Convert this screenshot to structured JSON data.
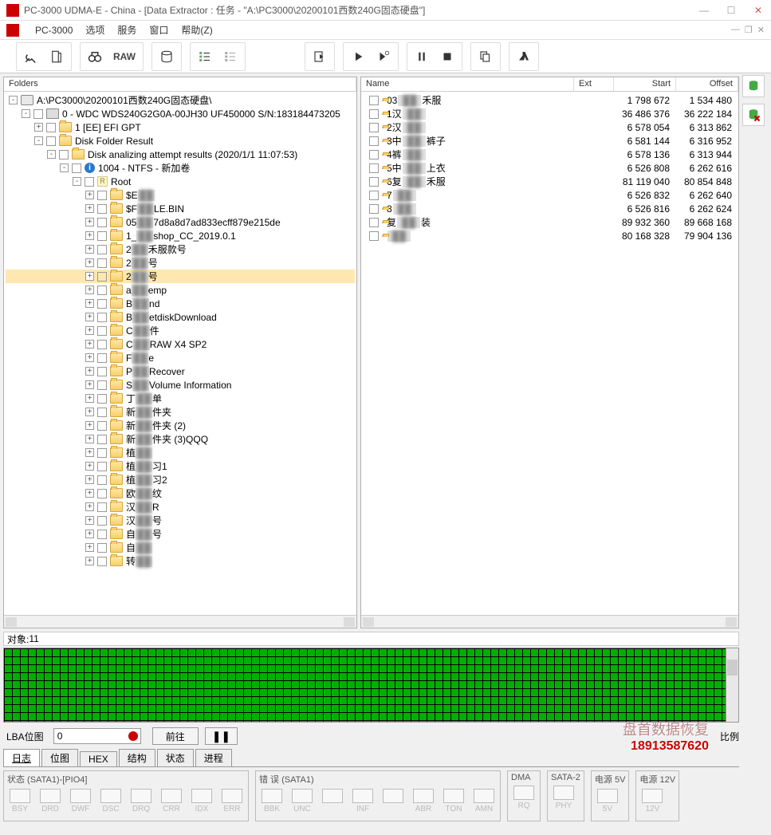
{
  "window": {
    "title": "PC-3000 UDMA-E - China - [Data Extractor : 任务 - \"A:\\PC3000\\20200101西数240G固态硬盘\"]"
  },
  "menu": {
    "app": "PC-3000",
    "items": [
      "选项",
      "服务",
      "窗口",
      "帮助(Z)"
    ]
  },
  "toolbar": {
    "raw": "RAW"
  },
  "folders_header": "Folders",
  "tree": [
    {
      "d": 0,
      "e": "-",
      "i": "drive",
      "t": "A:\\PC3000\\20200101西数240G固态硬盘\\"
    },
    {
      "d": 1,
      "e": "-",
      "c": 1,
      "i": "disk",
      "t": "0 - WDC WDS240G2G0A-00JH30 UF450000 S/N:183184473205"
    },
    {
      "d": 2,
      "e": "+",
      "c": 1,
      "i": "folder",
      "pre": "1 [EE] EFI GPT",
      "badge": "xx"
    },
    {
      "d": 2,
      "e": "-",
      "c": 1,
      "i": "folder",
      "t": "Disk Folder Result"
    },
    {
      "d": 3,
      "e": "-",
      "c": 1,
      "i": "folder",
      "t": "Disk analizing attempt results (2020/1/1 11:07:53)"
    },
    {
      "d": 4,
      "e": "-",
      "c": 1,
      "i": "info",
      "t": "1004 - NTFS - 新加卷"
    },
    {
      "d": 5,
      "e": "-",
      "c": 1,
      "i": "root",
      "t": "Root"
    },
    {
      "d": 6,
      "e": "+",
      "c": 1,
      "i": "folder",
      "pre": "$E",
      "blur": "  "
    },
    {
      "d": 6,
      "e": "+",
      "c": 1,
      "i": "folder",
      "pre": "$F",
      "blur": "  ",
      "post": "LE.BIN"
    },
    {
      "d": 6,
      "e": "+",
      "c": 1,
      "i": "folder",
      "pre": "05",
      "blur": "  ",
      "post": "7d8a8d7ad833ecff879e215de"
    },
    {
      "d": 6,
      "e": "+",
      "c": 1,
      "i": "folder",
      "pre": "1_",
      "blur": "  ",
      "post": "shop_CC_2019.0.1"
    },
    {
      "d": 6,
      "e": "+",
      "c": 1,
      "i": "folder",
      "pre": "2",
      "blur": "  ",
      "post": "禾服款号"
    },
    {
      "d": 6,
      "e": "+",
      "c": 1,
      "i": "folder",
      "pre": "2",
      "blur": "  ",
      "post": "号"
    },
    {
      "d": 6,
      "e": "+",
      "c": 1,
      "i": "folder",
      "pre": "2",
      "blur": "  ",
      "post": "号",
      "sel": 1
    },
    {
      "d": 6,
      "e": "+",
      "c": 1,
      "i": "folder",
      "pre": "a",
      "blur": "  ",
      "post": "emp"
    },
    {
      "d": 6,
      "e": "+",
      "c": 1,
      "i": "folder",
      "pre": "B",
      "blur": "  ",
      "post": "nd"
    },
    {
      "d": 6,
      "e": "+",
      "c": 1,
      "i": "folder",
      "pre": "B",
      "blur": "  ",
      "post": "etdiskDownload"
    },
    {
      "d": 6,
      "e": "+",
      "c": 1,
      "i": "folder",
      "pre": "C",
      "blur": "  ",
      "post": "件"
    },
    {
      "d": 6,
      "e": "+",
      "c": 1,
      "i": "folder",
      "pre": "C",
      "blur": "  ",
      "post": "RAW X4 SP2"
    },
    {
      "d": 6,
      "e": "+",
      "c": 1,
      "i": "folder",
      "pre": "F",
      "blur": "  ",
      "post": "e"
    },
    {
      "d": 6,
      "e": "+",
      "c": 1,
      "i": "folder",
      "pre": "P",
      "blur": "  ",
      "post": "Recover"
    },
    {
      "d": 6,
      "e": "+",
      "c": 1,
      "i": "folder",
      "pre": "S",
      "blur": "  ",
      "post": "Volume Information"
    },
    {
      "d": 6,
      "e": "+",
      "c": 1,
      "i": "folder",
      "pre": "丁",
      "blur": "  ",
      "post": "单"
    },
    {
      "d": 6,
      "e": "+",
      "c": 1,
      "i": "folder",
      "pre": "新",
      "blur": "  ",
      "post": "件夹"
    },
    {
      "d": 6,
      "e": "+",
      "c": 1,
      "i": "folder",
      "pre": "新",
      "blur": "  ",
      "post": "件夹 (2)"
    },
    {
      "d": 6,
      "e": "+",
      "c": 1,
      "i": "folder",
      "pre": "新",
      "blur": "  ",
      "post": "件夹 (3)QQQ"
    },
    {
      "d": 6,
      "e": "+",
      "c": 1,
      "i": "folder",
      "pre": "植",
      "blur": "  "
    },
    {
      "d": 6,
      "e": "+",
      "c": 1,
      "i": "folder",
      "pre": "植",
      "blur": "  ",
      "post": "习1"
    },
    {
      "d": 6,
      "e": "+",
      "c": 1,
      "i": "folder",
      "pre": "植",
      "blur": "  ",
      "post": "习2"
    },
    {
      "d": 6,
      "e": "+",
      "c": 1,
      "i": "folder",
      "pre": "欧",
      "blur": "  ",
      "post": "纹"
    },
    {
      "d": 6,
      "e": "+",
      "c": 1,
      "i": "folder",
      "pre": "汉",
      "blur": "  ",
      "post": "R"
    },
    {
      "d": 6,
      "e": "+",
      "c": 1,
      "i": "folder",
      "pre": "汉",
      "blur": "  ",
      "post": "号"
    },
    {
      "d": 6,
      "e": "+",
      "c": 1,
      "i": "folder",
      "pre": "自",
      "blur": "  ",
      "post": "号"
    },
    {
      "d": 6,
      "e": "+",
      "c": 1,
      "i": "folder",
      "pre": "自",
      "blur": "  "
    },
    {
      "d": 6,
      "e": "+",
      "c": 1,
      "i": "folder",
      "pre": "转",
      "blur": "  "
    }
  ],
  "list_cols": {
    "name": "Name",
    "ext": "Ext",
    "start": "Start",
    "offset": "Offset"
  },
  "list": [
    {
      "pre": "03",
      "blur": "  ",
      "post": "禾服",
      "start": "1 798 672",
      "offset": "1 534 480"
    },
    {
      "pre": "1汉",
      "blur": "  ",
      "post": "",
      "start": "36 486 376",
      "offset": "36 222 184"
    },
    {
      "pre": "2汉",
      "blur": "  ",
      "post": "",
      "start": "6 578 054",
      "offset": "6 313 862"
    },
    {
      "pre": "3中",
      "blur": "  ",
      "post": "裤子",
      "start": "6 581 144",
      "offset": "6 316 952"
    },
    {
      "pre": "4裤",
      "blur": "  ",
      "post": "",
      "start": "6 578 136",
      "offset": "6 313 944"
    },
    {
      "pre": "5中",
      "blur": " ",
      "post": "上衣",
      "start": "6 526 808",
      "offset": "6 262 616"
    },
    {
      "pre": "6复",
      "blur": " ",
      "post": "禾服",
      "start": "81 119 040",
      "offset": "80 854 848"
    },
    {
      "pre": "7",
      "blur": "   ",
      "post": "",
      "start": "6 526 832",
      "offset": "6 262 640"
    },
    {
      "pre": "8",
      "blur": "   ",
      "post": "",
      "start": "6 526 816",
      "offset": "6 262 624"
    },
    {
      "pre": "复",
      "blur": "  ",
      "post": "装",
      "start": "89 932 360",
      "offset": "89 668 168"
    },
    {
      "pre": "",
      "blur": "   ",
      "post": "",
      "start": "80 168 328",
      "offset": "79 904 136"
    }
  ],
  "objects": {
    "label": "对象:",
    "count": "11"
  },
  "lba": {
    "label": "LBA位图",
    "value": "0",
    "go": "前往",
    "ratio": "比例"
  },
  "watermark": {
    "line1": "盘首数据恢复",
    "line2": "18913587620"
  },
  "tabs": [
    "日志",
    "位图",
    "HEX",
    "结构",
    "状态",
    "进程"
  ],
  "status": {
    "g1": {
      "title": "状态 (SATA1)-[PIO4]",
      "items": [
        "BSY",
        "DRD",
        "DWF",
        "DSC",
        "DRQ",
        "CRR",
        "IDX",
        "ERR"
      ]
    },
    "g2": {
      "title": "错 误 (SATA1)",
      "items": [
        "BBK",
        "UNC",
        "",
        "INF",
        "",
        "ABR",
        "TON",
        "AMN"
      ]
    },
    "g3": {
      "title": "DMA",
      "items": [
        "RQ"
      ]
    },
    "g4": {
      "title": "SATA-2",
      "items": [
        "PHY"
      ]
    },
    "g5": {
      "title": "电源 5V",
      "items": [
        "5V"
      ]
    },
    "g6": {
      "title": "电源 12V",
      "items": [
        "12V"
      ]
    }
  }
}
